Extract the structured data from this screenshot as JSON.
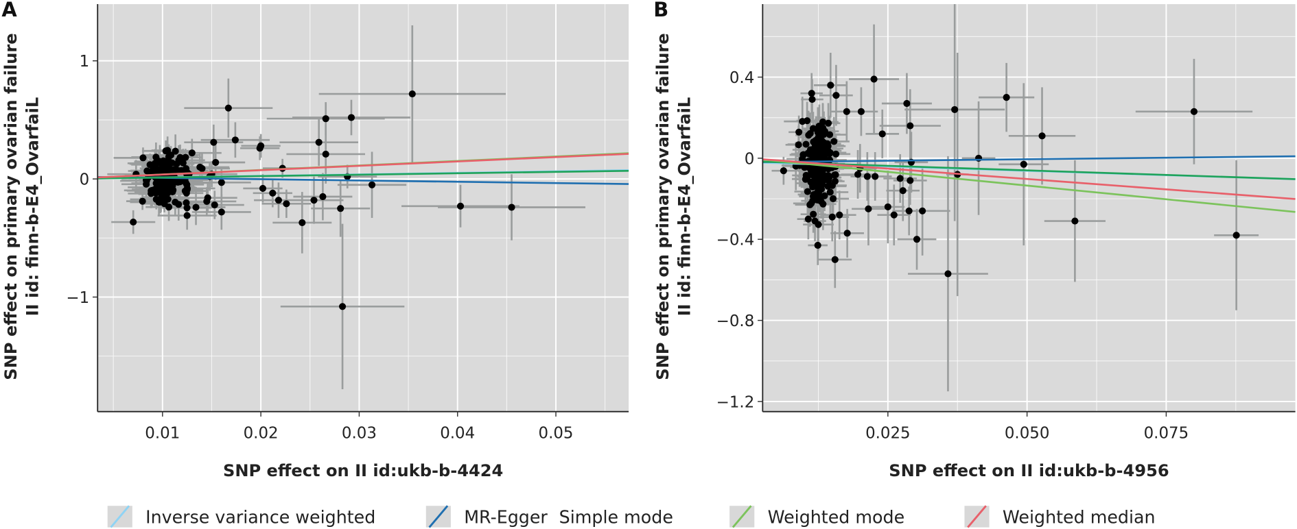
{
  "legend": {
    "position": "bottom",
    "items": [
      {
        "label": "Inverse variance weighted",
        "color": "#8fd3f4"
      },
      {
        "label": "MR-Egger",
        "color": "#1f6fb0"
      },
      {
        "label": "Simple mode",
        "color": "#1fa35a"
      },
      {
        "label": "Weighted mode",
        "color": "#7cc35c"
      },
      {
        "label": "Weighted median",
        "color": "#e8606a"
      }
    ]
  },
  "chart_data": [
    {
      "type": "scatter",
      "panel": "A",
      "title": "",
      "xlabel": "SNP effect on II id:ukb-b-4424",
      "ylabel_line1": "SNP effect on primary ovarian failure",
      "ylabel_line2": "II id: finn-b-E4_OvarfaiL",
      "xlim": [
        0.0034,
        0.0574
      ],
      "ylim": [
        -1.97,
        1.48
      ],
      "xticks": [
        0.01,
        0.02,
        0.03,
        0.04,
        0.05
      ],
      "xtick_labels": [
        "0.01",
        "0.02",
        "0.03",
        "0.04",
        "0.05"
      ],
      "yticks": [
        1,
        0,
        -1
      ],
      "ytick_labels": [
        "1",
        "0",
        "−1"
      ],
      "grid": true,
      "points": [
        {
          "x": 0.0167,
          "y": 0.6,
          "xe": 0.0045,
          "ye": 0.25
        },
        {
          "x": 0.0174,
          "y": 0.33,
          "xe": 0.0035,
          "ye": 0.15
        },
        {
          "x": 0.0152,
          "y": 0.31,
          "xe": 0.003,
          "ye": 0.15
        },
        {
          "x": 0.02,
          "y": 0.28,
          "xe": 0.002,
          "ye": 0.1
        },
        {
          "x": 0.0199,
          "y": 0.26,
          "xe": 0.002,
          "ye": 0.1
        },
        {
          "x": 0.0222,
          "y": 0.09,
          "xe": 0.002,
          "ye": 0.08
        },
        {
          "x": 0.0266,
          "y": 0.51,
          "xe": 0.006,
          "ye": 0.14
        },
        {
          "x": 0.0292,
          "y": 0.52,
          "xe": 0.006,
          "ye": 0.15
        },
        {
          "x": 0.0354,
          "y": 0.72,
          "xe": 0.0095,
          "ye": 0.58
        },
        {
          "x": 0.0259,
          "y": 0.31,
          "xe": 0.004,
          "ye": 0.2
        },
        {
          "x": 0.0266,
          "y": 0.21,
          "xe": 0.004,
          "ye": 0.25
        },
        {
          "x": 0.0288,
          "y": 0.02,
          "xe": 0.003,
          "ye": 0.1
        },
        {
          "x": 0.0313,
          "y": -0.05,
          "xe": 0.0035,
          "ye": 0.28
        },
        {
          "x": 0.0202,
          "y": -0.08,
          "xe": 0.002,
          "ye": 0.12
        },
        {
          "x": 0.0212,
          "y": -0.12,
          "xe": 0.002,
          "ye": 0.12
        },
        {
          "x": 0.0218,
          "y": -0.18,
          "xe": 0.0025,
          "ye": 0.15
        },
        {
          "x": 0.0226,
          "y": -0.21,
          "xe": 0.0025,
          "ye": 0.12
        },
        {
          "x": 0.0242,
          "y": -0.37,
          "xe": 0.003,
          "ye": 0.26
        },
        {
          "x": 0.0254,
          "y": -0.18,
          "xe": 0.003,
          "ye": 0.2
        },
        {
          "x": 0.0263,
          "y": -0.15,
          "xe": 0.003,
          "ye": 0.2
        },
        {
          "x": 0.0281,
          "y": -0.25,
          "xe": 0.003,
          "ye": 0.24
        },
        {
          "x": 0.0283,
          "y": -1.08,
          "xe": 0.0063,
          "ye": 0.7
        },
        {
          "x": 0.0403,
          "y": -0.23,
          "xe": 0.006,
          "ye": 0.18
        },
        {
          "x": 0.0455,
          "y": -0.24,
          "xe": 0.0075,
          "ye": 0.28
        },
        {
          "x": 0.016,
          "y": -0.03,
          "xe": 0.003,
          "ye": 0.12
        },
        {
          "x": 0.0146,
          "y": -0.16,
          "xe": 0.003,
          "ye": 0.12
        },
        {
          "x": 0.016,
          "y": -0.28,
          "xe": 0.003,
          "ye": 0.15
        },
        {
          "x": 0.0145,
          "y": -0.19,
          "xe": 0.003,
          "ye": 0.12
        },
        {
          "x": 0.0153,
          "y": -0.22,
          "xe": 0.003,
          "ye": 0.12
        },
        {
          "x": 0.0125,
          "y": -0.31,
          "xe": 0.003,
          "ye": 0.12
        },
        {
          "x": 0.0134,
          "y": -0.24,
          "xe": 0.003,
          "ye": 0.15
        },
        {
          "x": 0.0138,
          "y": 0.1,
          "xe": 0.003,
          "ye": 0.12
        },
        {
          "x": 0.0154,
          "y": 0.14,
          "xe": 0.003,
          "ye": 0.15
        },
        {
          "x": 0.013,
          "y": 0.22,
          "xe": 0.003,
          "ye": 0.12
        },
        {
          "x": 0.0148,
          "y": 0.02,
          "xe": 0.003,
          "ye": 0.12
        },
        {
          "x": 0.0127,
          "y": 0.04,
          "xe": 0.003,
          "ye": 0.12
        }
      ],
      "cluster": {
        "x_center": 0.0103,
        "x_spread": 0.0022,
        "y_center": 0.0,
        "y_spread": 0.19,
        "n": 150,
        "xe": 0.0025,
        "ye": 0.12
      },
      "lines": [
        {
          "method": "Inverse variance weighted",
          "intercept": 0,
          "slope": 1.3
        },
        {
          "method": "MR-Egger",
          "intercept": 0.02,
          "slope": -1.1
        },
        {
          "method": "Simple mode",
          "intercept": 0,
          "slope": 1.2
        },
        {
          "method": "Weighted mode",
          "intercept": 0,
          "slope": 3.8
        },
        {
          "method": "Weighted median",
          "intercept": 0,
          "slope": 3.7
        }
      ]
    },
    {
      "type": "scatter",
      "panel": "B",
      "title": "",
      "xlabel": "SNP effect on II id:ukb-b-4956",
      "ylabel_line1": "SNP effect on primary ovarian failure",
      "ylabel_line2": "II id: finn-b-E4_OvarfaiL",
      "xlim": [
        0.0025,
        0.0982
      ],
      "ylim": [
        -1.25,
        0.76
      ],
      "xticks": [
        0.025,
        0.05,
        0.075
      ],
      "xtick_labels": [
        "0.025",
        "0.050",
        "0.075"
      ],
      "yticks": [
        0.4,
        0,
        -0.4,
        -0.8,
        -1.2
      ],
      "ytick_labels": [
        "0.4",
        "0",
        "−0.4",
        "−0.8",
        "−1.2"
      ],
      "grid": true,
      "points": [
        {
          "x": 0.0225,
          "y": 0.39,
          "xe": 0.0045,
          "ye": 0.27
        },
        {
          "x": 0.0147,
          "y": 0.36,
          "xe": 0.003,
          "ye": 0.16
        },
        {
          "x": 0.0113,
          "y": 0.32,
          "xe": 0.002,
          "ye": 0.1
        },
        {
          "x": 0.0157,
          "y": 0.31,
          "xe": 0.003,
          "ye": 0.15
        },
        {
          "x": 0.0114,
          "y": 0.29,
          "xe": 0.002,
          "ye": 0.1
        },
        {
          "x": 0.0284,
          "y": 0.27,
          "xe": 0.0045,
          "ye": 0.15
        },
        {
          "x": 0.0176,
          "y": 0.23,
          "xe": 0.003,
          "ye": 0.15
        },
        {
          "x": 0.0202,
          "y": 0.23,
          "xe": 0.003,
          "ye": 0.12
        },
        {
          "x": 0.029,
          "y": 0.16,
          "xe": 0.0055,
          "ye": 0.18
        },
        {
          "x": 0.024,
          "y": 0.12,
          "xe": 0.003,
          "ye": 0.12
        },
        {
          "x": 0.037,
          "y": 0.24,
          "xe": 0.009,
          "ye": 0.55
        },
        {
          "x": 0.0463,
          "y": 0.3,
          "xe": 0.005,
          "ye": 0.17
        },
        {
          "x": 0.0527,
          "y": 0.11,
          "xe": 0.006,
          "ye": 0.24
        },
        {
          "x": 0.08,
          "y": 0.23,
          "xe": 0.0105,
          "ye": 0.26
        },
        {
          "x": 0.0413,
          "y": 0.0,
          "xe": 0.003,
          "ye": 0.28
        },
        {
          "x": 0.0292,
          "y": -0.02,
          "xe": 0.003,
          "ye": 0.15
        },
        {
          "x": 0.0272,
          "y": -0.1,
          "xe": 0.003,
          "ye": 0.12
        },
        {
          "x": 0.029,
          "y": -0.11,
          "xe": 0.003,
          "ye": 0.12
        },
        {
          "x": 0.0277,
          "y": -0.16,
          "xe": 0.003,
          "ye": 0.15
        },
        {
          "x": 0.0288,
          "y": -0.26,
          "xe": 0.003,
          "ye": 0.12
        },
        {
          "x": 0.0312,
          "y": -0.26,
          "xe": 0.005,
          "ye": 0.22
        },
        {
          "x": 0.0302,
          "y": -0.4,
          "xe": 0.0035,
          "ye": 0.15
        },
        {
          "x": 0.0358,
          "y": -0.57,
          "xe": 0.0072,
          "ye": 0.58
        },
        {
          "x": 0.0375,
          "y": -0.08,
          "xe": 0.002,
          "ye": 0.6
        },
        {
          "x": 0.0494,
          "y": -0.03,
          "xe": 0.0045,
          "ye": 0.4
        },
        {
          "x": 0.0586,
          "y": -0.31,
          "xe": 0.0055,
          "ye": 0.3
        },
        {
          "x": 0.0876,
          "y": -0.38,
          "xe": 0.004,
          "ye": 0.37
        },
        {
          "x": 0.0155,
          "y": -0.5,
          "xe": 0.003,
          "ye": 0.14
        },
        {
          "x": 0.0177,
          "y": -0.37,
          "xe": 0.003,
          "ye": 0.12
        },
        {
          "x": 0.0215,
          "y": -0.25,
          "xe": 0.003,
          "ye": 0.18
        },
        {
          "x": 0.025,
          "y": -0.24,
          "xe": 0.003,
          "ye": 0.18
        },
        {
          "x": 0.0261,
          "y": -0.28,
          "xe": 0.003,
          "ye": 0.15
        },
        {
          "x": 0.015,
          "y": -0.29,
          "xe": 0.003,
          "ye": 0.12
        },
        {
          "x": 0.0163,
          "y": -0.28,
          "xe": 0.003,
          "ye": 0.12
        },
        {
          "x": 0.0107,
          "y": -0.3,
          "xe": 0.002,
          "ye": 0.1
        },
        {
          "x": 0.0119,
          "y": -0.31,
          "xe": 0.002,
          "ye": 0.1
        },
        {
          "x": 0.0213,
          "y": -0.09,
          "xe": 0.003,
          "ye": 0.12
        },
        {
          "x": 0.0227,
          "y": -0.09,
          "xe": 0.003,
          "ye": 0.12
        },
        {
          "x": 0.0196,
          "y": -0.08,
          "xe": 0.003,
          "ye": 0.12
        },
        {
          "x": 0.02,
          "y": -0.05,
          "xe": 0.003,
          "ye": 0.12
        }
      ],
      "cluster": {
        "x_center": 0.0125,
        "x_spread": 0.0028,
        "y_center": -0.03,
        "y_spread": 0.17,
        "n": 220,
        "xe": 0.0028,
        "ye": 0.11
      },
      "lines": [
        {
          "method": "Inverse variance weighted",
          "intercept": -0.02,
          "slope": -0.85
        },
        {
          "method": "MR-Egger",
          "intercept": -0.02,
          "slope": 0.3
        },
        {
          "method": "Simple mode",
          "intercept": -0.015,
          "slope": -0.9
        },
        {
          "method": "Weighted mode",
          "intercept": 0,
          "slope": -2.7
        },
        {
          "method": "Weighted median",
          "intercept": 0,
          "slope": -2.05
        }
      ]
    }
  ]
}
